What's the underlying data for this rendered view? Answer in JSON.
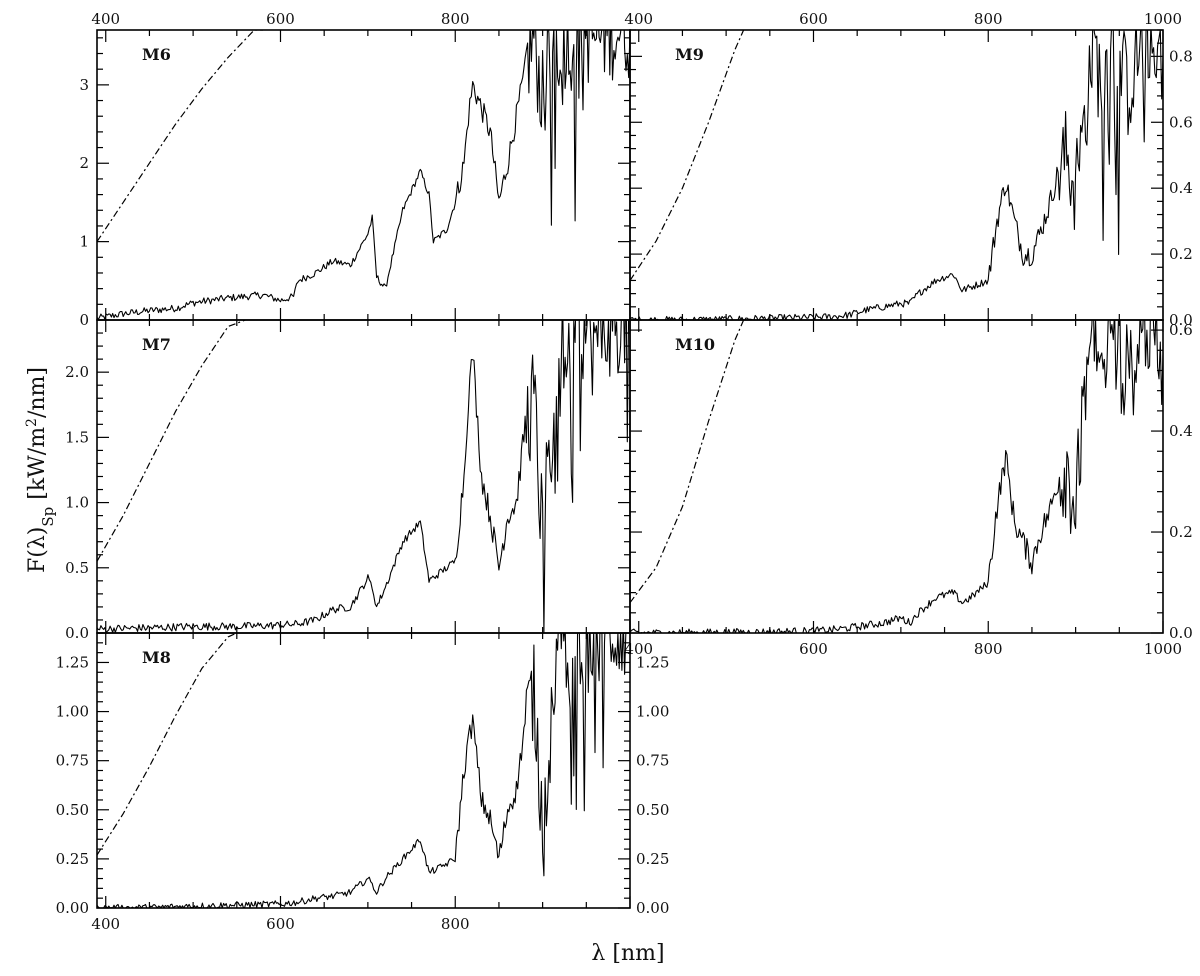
{
  "figure": {
    "ylabel": "F(λ)",
    "ylabel_sub": "Sp",
    "ylabel_units": " [kW/m",
    "ylabel_sup": "2",
    "ylabel_tail": "/nm]",
    "xlabel": "λ [nm]"
  },
  "chart_data": [
    {
      "type": "line",
      "label": "M6",
      "xlim": [
        390,
        1000
      ],
      "ylim": [
        0,
        3.7
      ],
      "xticks_top": [
        "400",
        "600",
        "800"
      ],
      "yticks_left": [
        "0",
        "1",
        "2",
        "3"
      ],
      "yticks_right": [],
      "series": [
        {
          "style": "solid",
          "x": [
            390,
            420,
            450,
            480,
            500,
            520,
            540,
            560,
            580,
            600,
            615,
            620,
            640,
            660,
            680,
            700,
            705,
            710,
            720,
            740,
            760,
            770,
            775,
            790,
            800,
            810,
            815,
            820,
            830,
            840,
            850,
            860,
            870,
            880,
            890,
            900,
            910,
            920,
            930,
            940,
            960,
            980,
            1000
          ],
          "y": [
            0.02,
            0.08,
            0.12,
            0.15,
            0.22,
            0.25,
            0.28,
            0.3,
            0.32,
            0.25,
            0.3,
            0.5,
            0.6,
            0.75,
            0.7,
            1.1,
            1.3,
            0.55,
            0.4,
            1.4,
            1.9,
            1.6,
            1.0,
            1.15,
            1.5,
            2.0,
            2.6,
            3.0,
            2.7,
            2.4,
            1.5,
            2.0,
            2.6,
            3.2,
            3.6,
            2.8,
            3.5,
            3.7,
            3.5,
            3.7,
            3.6,
            3.7,
            3.7
          ]
        },
        {
          "style": "dashdot",
          "x": [
            390,
            420,
            450,
            480,
            510,
            540,
            570,
            580
          ],
          "y": [
            1.0,
            1.5,
            2.0,
            2.5,
            2.95,
            3.35,
            3.7,
            3.7
          ]
        }
      ]
    },
    {
      "type": "line",
      "label": "M9",
      "xlim": [
        390,
        1000
      ],
      "ylim": [
        0,
        0.88
      ],
      "xticks_top": [
        "400",
        "600",
        "800",
        "1000"
      ],
      "yticks_left": [],
      "yticks_right": [
        "0.0",
        "0.2",
        "0.4",
        "0.6",
        "0.8"
      ],
      "series": [
        {
          "style": "solid",
          "x": [
            390,
            450,
            500,
            550,
            600,
            620,
            640,
            660,
            680,
            700,
            710,
            720,
            740,
            760,
            770,
            780,
            800,
            810,
            820,
            830,
            840,
            850,
            860,
            870,
            880,
            890,
            900,
            910,
            920,
            930,
            940,
            960,
            980,
            1000
          ],
          "y": [
            0,
            0,
            0.002,
            0.005,
            0.008,
            0.01,
            0.015,
            0.03,
            0.04,
            0.05,
            0.05,
            0.08,
            0.12,
            0.14,
            0.09,
            0.1,
            0.12,
            0.3,
            0.42,
            0.3,
            0.2,
            0.2,
            0.27,
            0.35,
            0.45,
            0.5,
            0.4,
            0.6,
            0.85,
            0.7,
            0.85,
            0.7,
            0.88,
            0.8
          ]
        },
        {
          "style": "dashdot",
          "x": [
            390,
            420,
            450,
            480,
            510,
            520
          ],
          "y": [
            0.12,
            0.24,
            0.4,
            0.6,
            0.82,
            0.88
          ]
        }
      ]
    },
    {
      "type": "line",
      "label": "M7",
      "xlim": [
        390,
        1000
      ],
      "ylim": [
        0,
        2.4
      ],
      "xticks_top": [],
      "yticks_left": [
        "0.0",
        "0.5",
        "1.0",
        "1.5",
        "2.0"
      ],
      "yticks_right": [],
      "series": [
        {
          "style": "solid",
          "x": [
            390,
            450,
            500,
            550,
            600,
            620,
            640,
            660,
            680,
            700,
            705,
            710,
            720,
            740,
            760,
            770,
            780,
            800,
            810,
            815,
            820,
            830,
            840,
            850,
            860,
            870,
            880,
            890,
            900,
            910,
            920,
            930,
            940,
            960,
            980,
            1000
          ],
          "y": [
            0.03,
            0.04,
            0.05,
            0.05,
            0.06,
            0.07,
            0.1,
            0.18,
            0.2,
            0.42,
            0.35,
            0.2,
            0.35,
            0.7,
            0.85,
            0.4,
            0.45,
            0.55,
            1.2,
            1.8,
            2.15,
            1.2,
            0.9,
            0.5,
            0.9,
            1.0,
            1.6,
            1.8,
            0.7,
            1.5,
            2.3,
            2.0,
            2.4,
            2.2,
            2.4,
            2.4
          ]
        },
        {
          "style": "dashdot",
          "x": [
            390,
            420,
            450,
            480,
            510,
            540,
            560
          ],
          "y": [
            0.55,
            0.9,
            1.3,
            1.7,
            2.05,
            2.35,
            2.4
          ]
        }
      ]
    },
    {
      "type": "line",
      "label": "M10",
      "xlim": [
        390,
        1000
      ],
      "ylim": [
        0,
        0.62
      ],
      "xticks_top": [],
      "xticks_bottom": [
        "400",
        "600",
        "800",
        "1000"
      ],
      "yticks_left": [],
      "yticks_right": [
        "0.0",
        "0.2",
        "0.4",
        "0.6"
      ],
      "series": [
        {
          "style": "solid",
          "x": [
            390,
            450,
            500,
            550,
            600,
            620,
            640,
            660,
            680,
            700,
            710,
            720,
            740,
            760,
            770,
            780,
            800,
            810,
            820,
            830,
            840,
            850,
            860,
            870,
            880,
            890,
            900,
            910,
            920,
            930,
            940,
            960,
            980,
            1000
          ],
          "y": [
            0,
            0,
            0.001,
            0.002,
            0.004,
            0.006,
            0.01,
            0.015,
            0.02,
            0.03,
            0.02,
            0.04,
            0.07,
            0.08,
            0.06,
            0.07,
            0.1,
            0.25,
            0.35,
            0.22,
            0.18,
            0.14,
            0.2,
            0.24,
            0.3,
            0.34,
            0.25,
            0.45,
            0.62,
            0.5,
            0.6,
            0.5,
            0.62,
            0.55
          ]
        },
        {
          "style": "dashdot",
          "x": [
            390,
            420,
            450,
            480,
            510,
            520
          ],
          "y": [
            0.06,
            0.13,
            0.25,
            0.42,
            0.58,
            0.62
          ]
        }
      ]
    },
    {
      "type": "line",
      "label": "M8",
      "xlim": [
        390,
        1000
      ],
      "ylim": [
        0,
        1.4
      ],
      "xticks_top": [],
      "xticks_bottom": [
        "400",
        "600",
        "800"
      ],
      "yticks_left": [
        "0.00",
        "0.25",
        "0.50",
        "0.75",
        "1.00",
        "1.25"
      ],
      "yticks_right": [
        "0.00",
        "0.25",
        "0.50",
        "0.75",
        "1.00",
        "1.25"
      ],
      "series": [
        {
          "style": "solid",
          "x": [
            390,
            450,
            500,
            550,
            600,
            620,
            640,
            660,
            680,
            700,
            705,
            710,
            720,
            740,
            760,
            770,
            780,
            800,
            810,
            815,
            820,
            830,
            840,
            850,
            860,
            870,
            880,
            890,
            900,
            910,
            920,
            930,
            940,
            960,
            980,
            1000
          ],
          "y": [
            0,
            0.002,
            0.01,
            0.015,
            0.02,
            0.03,
            0.05,
            0.06,
            0.08,
            0.15,
            0.12,
            0.08,
            0.15,
            0.25,
            0.35,
            0.18,
            0.2,
            0.25,
            0.7,
            0.85,
            0.95,
            0.55,
            0.45,
            0.25,
            0.5,
            0.6,
            0.95,
            1.1,
            0.45,
            0.9,
            1.4,
            1.1,
            1.4,
            1.3,
            1.4,
            1.4
          ]
        },
        {
          "style": "dashdot",
          "x": [
            390,
            420,
            450,
            480,
            510,
            540,
            550
          ],
          "y": [
            0.27,
            0.48,
            0.72,
            0.98,
            1.22,
            1.38,
            1.4
          ]
        }
      ]
    }
  ]
}
